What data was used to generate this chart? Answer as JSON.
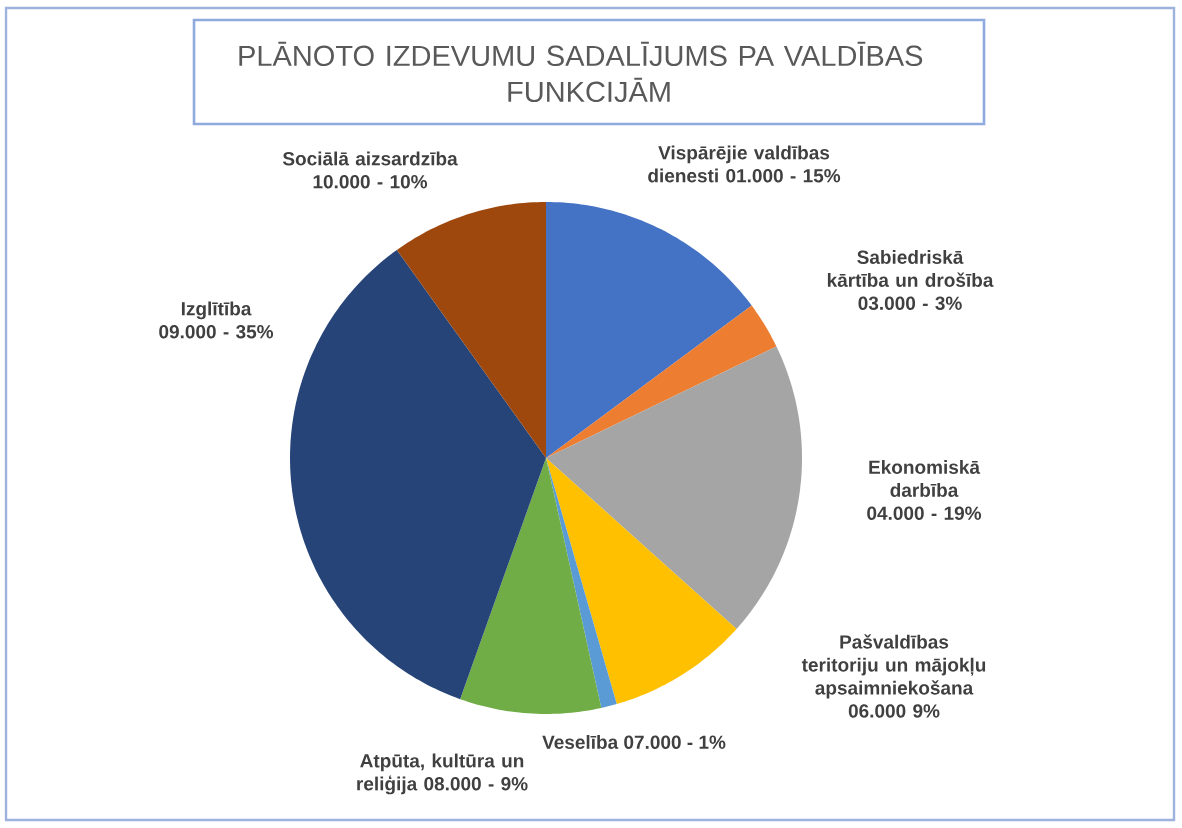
{
  "chart_data": {
    "type": "pie",
    "title": "PLĀNOTO IZDEVUMU SADALĪJUMS PA VALDĪBAS FUNKCIJĀM",
    "categories": [
      "Vispārējie valdības dienesti 01.000 -",
      "Sabiedriskā kārtība un drošība 03.000 -",
      "Ekonomiskā darbība 04.000 -",
      "Pašvaldības teritoriju un mājokļu apsaimniekošana 06.000",
      "Veselība 07.000 -",
      "Atpūta, kultūra un reliģija 08.000 -",
      "Izglītība 09.000 -",
      "Sociālā aizsardzība 10.000 -"
    ],
    "values": [
      15,
      3,
      19,
      9,
      1,
      9,
      35,
      10
    ],
    "value_labels": [
      "15%",
      "3%",
      "19%",
      "9%",
      "1%",
      "9%",
      "35%",
      "10%"
    ],
    "colors": [
      "#4472c4",
      "#ed7d31",
      "#a5a5a5",
      "#ffc000",
      "#5b9bd5",
      "#70ad47",
      "#264478",
      "#9e480e"
    ]
  }
}
